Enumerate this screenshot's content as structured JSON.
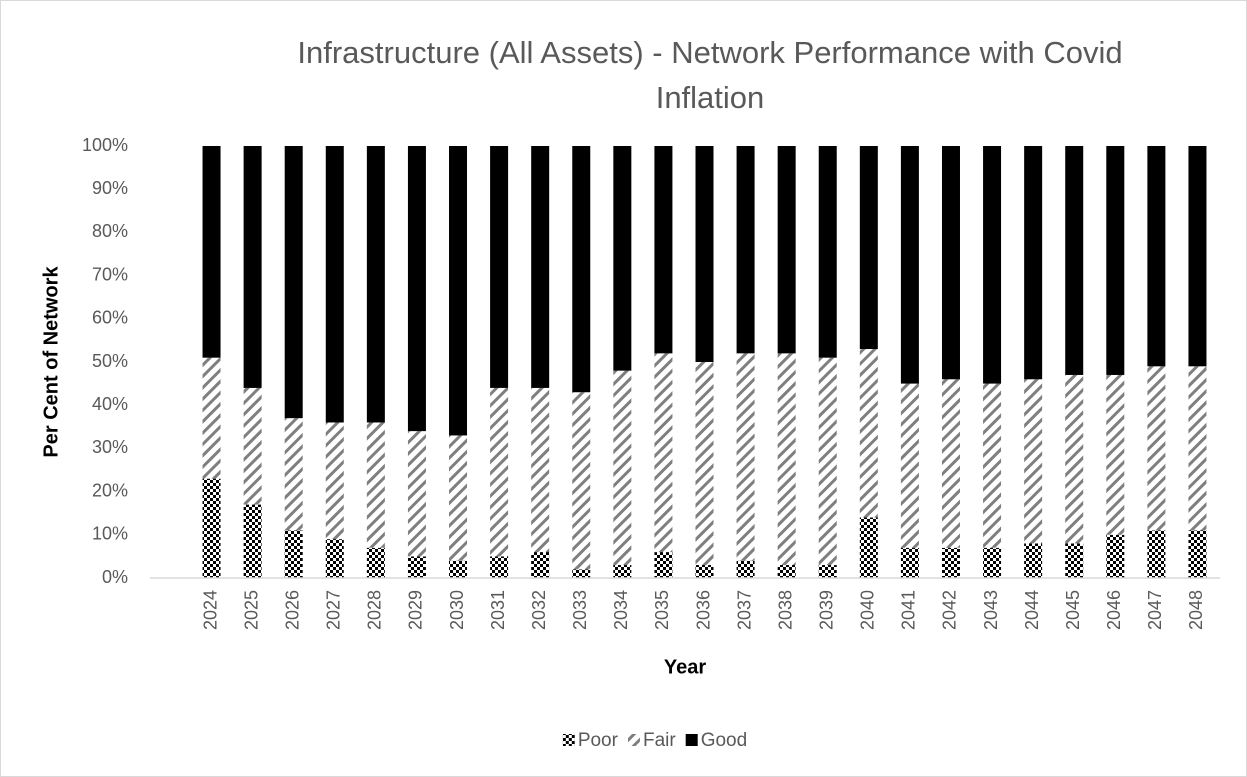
{
  "chart_data": {
    "type": "stacked_bar",
    "title": "Infrastructure (All Assets) - Network Performance with Covid Inflation",
    "title_lines": [
      "Infrastructure (All Assets) - Network Performance with Covid",
      "Inflation"
    ],
    "x_label": "Year",
    "y_label": "Per Cent of Network",
    "categories": [
      "2024",
      "2025",
      "2026",
      "2027",
      "2028",
      "2029",
      "2030",
      "2031",
      "2032",
      "2033",
      "2034",
      "2035",
      "2036",
      "2037",
      "2038",
      "2039",
      "2040",
      "2041",
      "2042",
      "2043",
      "2044",
      "2045",
      "2046",
      "2047",
      "2048"
    ],
    "series": [
      {
        "name": "Poor",
        "color": "#000000",
        "pattern": "checker",
        "values": [
          23,
          17,
          11,
          9,
          7,
          5,
          4,
          5,
          6,
          2,
          3,
          6,
          3,
          4,
          3,
          3,
          14,
          7,
          7,
          7,
          8,
          8,
          10,
          11,
          11
        ]
      },
      {
        "name": "Fair",
        "color": "#7f7f7f",
        "pattern": "hatch",
        "values": [
          28,
          27,
          26,
          27,
          29,
          29,
          29,
          39,
          38,
          41,
          45,
          46,
          47,
          48,
          49,
          48,
          39,
          38,
          39,
          38,
          38,
          39,
          37,
          38,
          38
        ]
      },
      {
        "name": "Good",
        "color": "#000000",
        "pattern": "solid",
        "values": [
          49,
          56,
          63,
          64,
          64,
          66,
          67,
          56,
          56,
          57,
          52,
          48,
          50,
          48,
          48,
          49,
          47,
          55,
          54,
          55,
          54,
          53,
          53,
          51,
          51
        ]
      }
    ],
    "ylim": [
      0,
      100
    ],
    "yticks": [
      {
        "value": 0,
        "label": "0%"
      },
      {
        "value": 10,
        "label": "10%"
      },
      {
        "value": 20,
        "label": "20%"
      },
      {
        "value": 30,
        "label": "30%"
      },
      {
        "value": 40,
        "label": "40%"
      },
      {
        "value": 50,
        "label": "50%"
      },
      {
        "value": 60,
        "label": "60%"
      },
      {
        "value": 70,
        "label": "70%"
      },
      {
        "value": 80,
        "label": "80%"
      },
      {
        "value": 90,
        "label": "90%"
      },
      {
        "value": 100,
        "label": "100%"
      }
    ],
    "grid": false,
    "legend": "bottom"
  }
}
